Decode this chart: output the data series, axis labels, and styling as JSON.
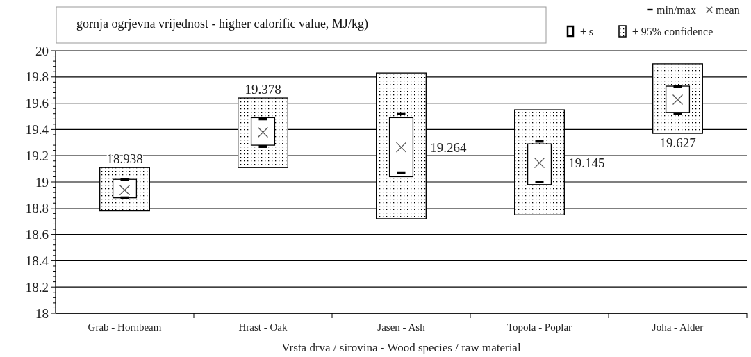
{
  "chart_data": {
    "type": "bar",
    "title": "gornja ogrjevna vrijednost - higher calorific value, MJ/kg)",
    "xlabel": "Vrsta drva / sirovina - Wood species / raw material",
    "categories": [
      "Grab - Hornbeam",
      "Hrast - Oak",
      "Jasen - Ash",
      "Topola - Poplar",
      "Joha - Alder"
    ],
    "series": [
      {
        "name": "± 95% confidence",
        "color": "#000000",
        "base": [
          18.78,
          19.11,
          18.72,
          18.75,
          19.37
        ],
        "values": [
          0.33,
          0.53,
          1.11,
          0.8,
          0.53
        ]
      },
      {
        "name": "± s",
        "color": "#ffffff",
        "base": [
          18.88,
          19.28,
          19.04,
          18.98,
          19.53
        ],
        "values": [
          0.14,
          0.21,
          0.45,
          0.31,
          0.2
        ]
      },
      {
        "name": "min/max",
        "type": "scatter",
        "marker": "square",
        "color": "#000000",
        "x": [
          "Grab - Hornbeam",
          "Hrast - Oak",
          "Jasen - Ash",
          "Topola - Poplar",
          "Joha - Alder",
          "Grab - Hornbeam",
          "Hrast - Oak",
          "Jasen - Ash",
          "Topola - Poplar",
          "Joha - Alder"
        ],
        "values": [
          19.02,
          19.48,
          19.52,
          19.31,
          19.73,
          18.88,
          19.27,
          19.07,
          19.0,
          19.52
        ]
      },
      {
        "name": "mean",
        "type": "scatter",
        "marker": "cross",
        "color": "#555555",
        "values": [
          18.938,
          19.378,
          19.264,
          19.145,
          19.627
        ],
        "value_labels": [
          "18.938",
          "19.378",
          "19.264",
          "19.145",
          "19.627"
        ]
      }
    ],
    "ylim": [
      18,
      20
    ],
    "yticks": [
      18,
      18.2,
      18.4,
      18.6,
      18.8,
      19,
      19.2,
      19.4,
      19.6,
      19.8,
      20
    ],
    "grid": "y",
    "legend": "top right"
  }
}
